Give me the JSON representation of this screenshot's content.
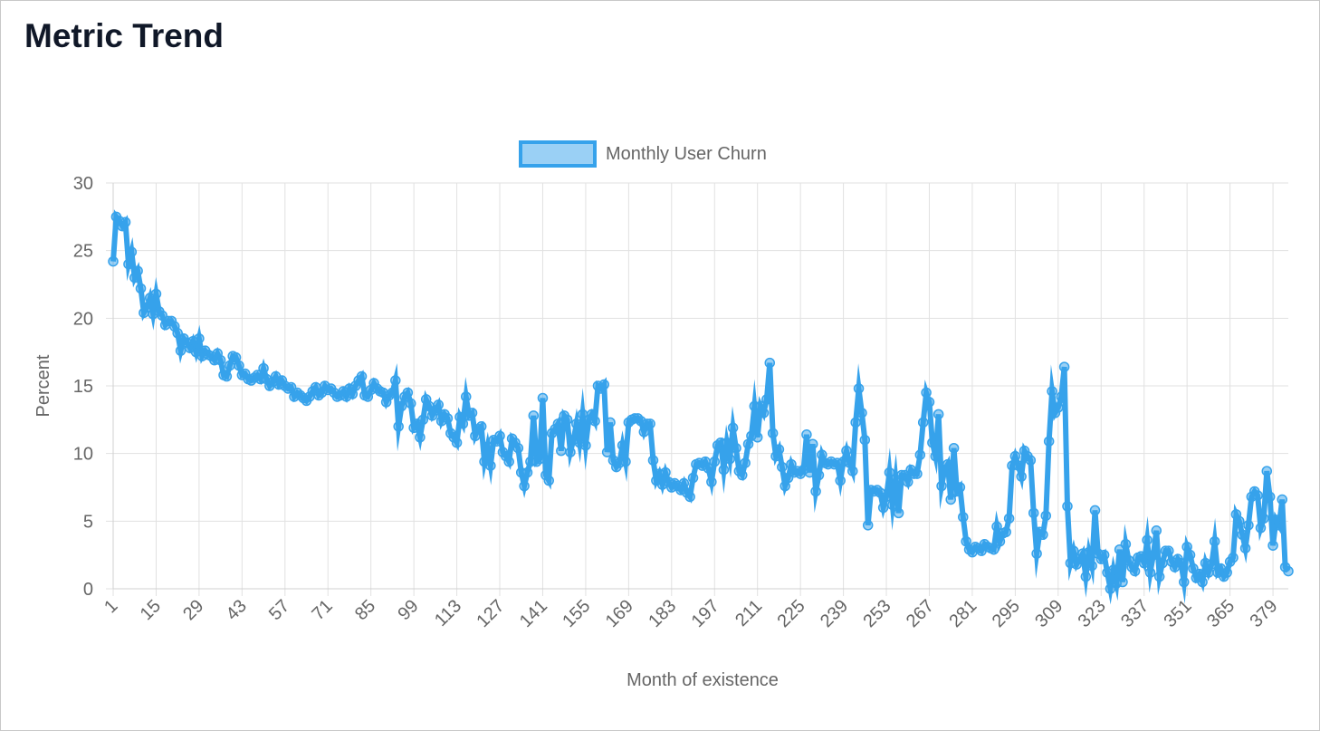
{
  "page": {
    "title": "Metric Trend"
  },
  "chart_data": {
    "type": "line",
    "xlabel": "Month of existence",
    "ylabel": "Percent",
    "categories": [
      1,
      2,
      3,
      4,
      5,
      6,
      7,
      8,
      9,
      10,
      11,
      12,
      13,
      14,
      15,
      16,
      17,
      18,
      19,
      20,
      21,
      22,
      23,
      24,
      25,
      26,
      27,
      28,
      29,
      30,
      31,
      32,
      33,
      34,
      35,
      36,
      37,
      38,
      39,
      40,
      41,
      42,
      43,
      44,
      45,
      46,
      47,
      48,
      49,
      50,
      51,
      52,
      53,
      54,
      55,
      56,
      57,
      58,
      59,
      60,
      61,
      62,
      63,
      64,
      65,
      66,
      67,
      68,
      69,
      70,
      71,
      72,
      73,
      74,
      75,
      76,
      77,
      78,
      79,
      80,
      81,
      82,
      83,
      84,
      85,
      86,
      87,
      88,
      89,
      90,
      91,
      92,
      93,
      94,
      95,
      96,
      97,
      98,
      99,
      100,
      101,
      102,
      103,
      104,
      105,
      106,
      107,
      108,
      109,
      110,
      111,
      112,
      113,
      114,
      115,
      116,
      117,
      118,
      119,
      120,
      121,
      122,
      123,
      124,
      125,
      126,
      127,
      128,
      129,
      130,
      131,
      132,
      133,
      134,
      135,
      136,
      137,
      138,
      139,
      140,
      141,
      142,
      143,
      144,
      145,
      146,
      147,
      148,
      149,
      150,
      151,
      152,
      153,
      154,
      155,
      156,
      157,
      158,
      159,
      160,
      161,
      162,
      163,
      164,
      165,
      166,
      167,
      168,
      169,
      170,
      171,
      172,
      173,
      174,
      175,
      176,
      177,
      178,
      179,
      180,
      181,
      182,
      183,
      184,
      185,
      186,
      187,
      188,
      189,
      190,
      191,
      192,
      193,
      194,
      195,
      196,
      197,
      198,
      199,
      200,
      201,
      202,
      203,
      204,
      205,
      206,
      207,
      208,
      209,
      210,
      211,
      212,
      213,
      214,
      215,
      216,
      217,
      218,
      219,
      220,
      221,
      222,
      223,
      224,
      225,
      226,
      227,
      228,
      229,
      230,
      231,
      232,
      233,
      234,
      235,
      236,
      237,
      238,
      239,
      240,
      241,
      242,
      243,
      244,
      245,
      246,
      247,
      248,
      249,
      250,
      251,
      252,
      253,
      254,
      255,
      256,
      257,
      258,
      259,
      260,
      261,
      262,
      263,
      264,
      265,
      266,
      267,
      268,
      269,
      270,
      271,
      272,
      273,
      274,
      275,
      276,
      277,
      278,
      279,
      280,
      281,
      282,
      283,
      284,
      285,
      286,
      287,
      288,
      289,
      290,
      291,
      292,
      293,
      294,
      295,
      296,
      297,
      298,
      299,
      300,
      301,
      302,
      303,
      304,
      305,
      306,
      307,
      308,
      309,
      310,
      311,
      312,
      313,
      314,
      315,
      316,
      317,
      318,
      319,
      320,
      321,
      322,
      323,
      324,
      325,
      326,
      327,
      328,
      329,
      330,
      331,
      332,
      333,
      334,
      335,
      336,
      337,
      338,
      339,
      340,
      341,
      342,
      343,
      344,
      345,
      346,
      347,
      348,
      349,
      350,
      351,
      352,
      353,
      354,
      355,
      356,
      357,
      358,
      359,
      360,
      361,
      362,
      363,
      364,
      365,
      366,
      367,
      368,
      369,
      370,
      371,
      372,
      373,
      374,
      375,
      376,
      377,
      378,
      379,
      380,
      381,
      382,
      383,
      384
    ],
    "series": [
      {
        "name": "Monthly User Churn",
        "color": "#36a2eb",
        "fill_color": "rgba(54,162,235,0.5)",
        "values": [
          24.2,
          27.5,
          27.2,
          26.8,
          27.1,
          24,
          24.9,
          23,
          23.5,
          22.2,
          20.4,
          20.8,
          21.5,
          20.3,
          21.8,
          20.5,
          20.2,
          19.5,
          19.8,
          19.8,
          19.4,
          18.9,
          17.6,
          18.5,
          18.2,
          17.8,
          18.3,
          17.5,
          18.5,
          17.2,
          17.6,
          17.3,
          17.2,
          16.9,
          17.4,
          16.9,
          15.8,
          15.7,
          16.5,
          17.2,
          17.1,
          16.5,
          15.8,
          15.9,
          15.5,
          15.4,
          15.6,
          15.8,
          15.5,
          16.3,
          15.5,
          15,
          15.3,
          15.7,
          15.1,
          15.4,
          15,
          14.8,
          14.9,
          14.2,
          14.5,
          14.3,
          14.1,
          13.9,
          14.2,
          14.6,
          14.9,
          14.3,
          14.5,
          15,
          14.7,
          14.8,
          14.5,
          14.2,
          14.3,
          14.6,
          14.2,
          14.8,
          14.4,
          15,
          15.4,
          15.7,
          14.3,
          14.2,
          14.7,
          15.2,
          14.8,
          14.6,
          14.5,
          13.8,
          14.3,
          14.5,
          15.4,
          12,
          13.5,
          14.2,
          14.5,
          13.7,
          11.9,
          12.2,
          11.2,
          12.5,
          14,
          13.5,
          12.8,
          13.2,
          13.6,
          12.4,
          12.9,
          12.6,
          11.5,
          11.2,
          10.8,
          12.7,
          12.2,
          14.2,
          12.8,
          13,
          11.3,
          11.8,
          12,
          9.4,
          10.5,
          9.1,
          11,
          10.9,
          11.3,
          10.1,
          9.8,
          9.4,
          11.1,
          10.8,
          10.4,
          8.6,
          7.6,
          8.6,
          9.4,
          12.8,
          9.4,
          9.6,
          14.1,
          8.4,
          8,
          11.5,
          11.8,
          12.2,
          10.2,
          12.8,
          12.5,
          10.1,
          11,
          12.2,
          10.8,
          12.9,
          10.6,
          12.5,
          12.9,
          12.4,
          15,
          14.8,
          15.1,
          10.1,
          12.3,
          9.5,
          9,
          9.3,
          10.6,
          9.4,
          12.3,
          12.5,
          12.6,
          12.6,
          12.4,
          11.6,
          12.2,
          12.2,
          9.5,
          8,
          8.5,
          7.7,
          8.6,
          7.9,
          7.5,
          7.8,
          7.6,
          7.3,
          7.8,
          7.1,
          6.8,
          8.2,
          9.2,
          9.3,
          9.1,
          9.4,
          8.9,
          7.9,
          9.4,
          10.6,
          10.8,
          8.8,
          10.8,
          9.6,
          11.9,
          10.4,
          8.7,
          8.4,
          9.3,
          10.7,
          11.3,
          13.5,
          11.2,
          13.5,
          13,
          14,
          16.7,
          11.5,
          9.8,
          10.3,
          9,
          7.6,
          8.2,
          9.2,
          8.6,
          8.7,
          8.5,
          8.8,
          11.4,
          8.6,
          10.7,
          7.2,
          8.4,
          9.9,
          9.3,
          9.2,
          9.4,
          9.2,
          9.3,
          8,
          9.4,
          10.2,
          9.3,
          8.7,
          12.3,
          14.8,
          13,
          11,
          4.7,
          7.3,
          7.2,
          7.3,
          7.1,
          6,
          6.8,
          8.6,
          6.2,
          8.1,
          5.6,
          8.4,
          8.4,
          7.9,
          8.8,
          8.5,
          8.5,
          9.9,
          12.3,
          14.5,
          13.8,
          10.8,
          9.8,
          12.9,
          7.6,
          8.8,
          9.2,
          6.6,
          10.4,
          7.2,
          7.5,
          5.3,
          3.5,
          2.9,
          2.7,
          3.1,
          3,
          2.8,
          3.3,
          3.1,
          3,
          2.9,
          4.6,
          3.5,
          4.1,
          4.2,
          5.2,
          9.1,
          9.8,
          9.1,
          8.3,
          10.2,
          9.8,
          9.5,
          5.6,
          2.6,
          4.2,
          4,
          5.4,
          10.9,
          14.6,
          13,
          13.4,
          14.2,
          16.4,
          6.1,
          1.9,
          2.8,
          1.8,
          2.2,
          2.6,
          0.9,
          2.7,
          1.7,
          5.8,
          2.6,
          2.2,
          2.5,
          1.2,
          0,
          1.4,
          0.4,
          2.9,
          0.5,
          3.3,
          2.1,
          1.6,
          1.3,
          2.3,
          2.4,
          1.9,
          3.6,
          1.2,
          2.5,
          4.3,
          0.9,
          1.9,
          2.8,
          2.8,
          2,
          1.6,
          2.2,
          1.9,
          0.5,
          3.1,
          2.5,
          1.5,
          0.8,
          1.1,
          0.5,
          1.9,
          1.2,
          1.8,
          3.5,
          1.2,
          1.5,
          0.9,
          1.2,
          2,
          2.3,
          5.5,
          5,
          4,
          3,
          4.7,
          6.8,
          7.2,
          6.9,
          4.5,
          5.2,
          8.7,
          6.8,
          3.2,
          5.1,
          4.7,
          6.6,
          1.6,
          1.3
        ]
      }
    ],
    "ylim": [
      0,
      30
    ],
    "yticks": [
      0,
      5,
      10,
      15,
      20,
      25,
      30
    ],
    "grid": true,
    "legend": "top"
  }
}
